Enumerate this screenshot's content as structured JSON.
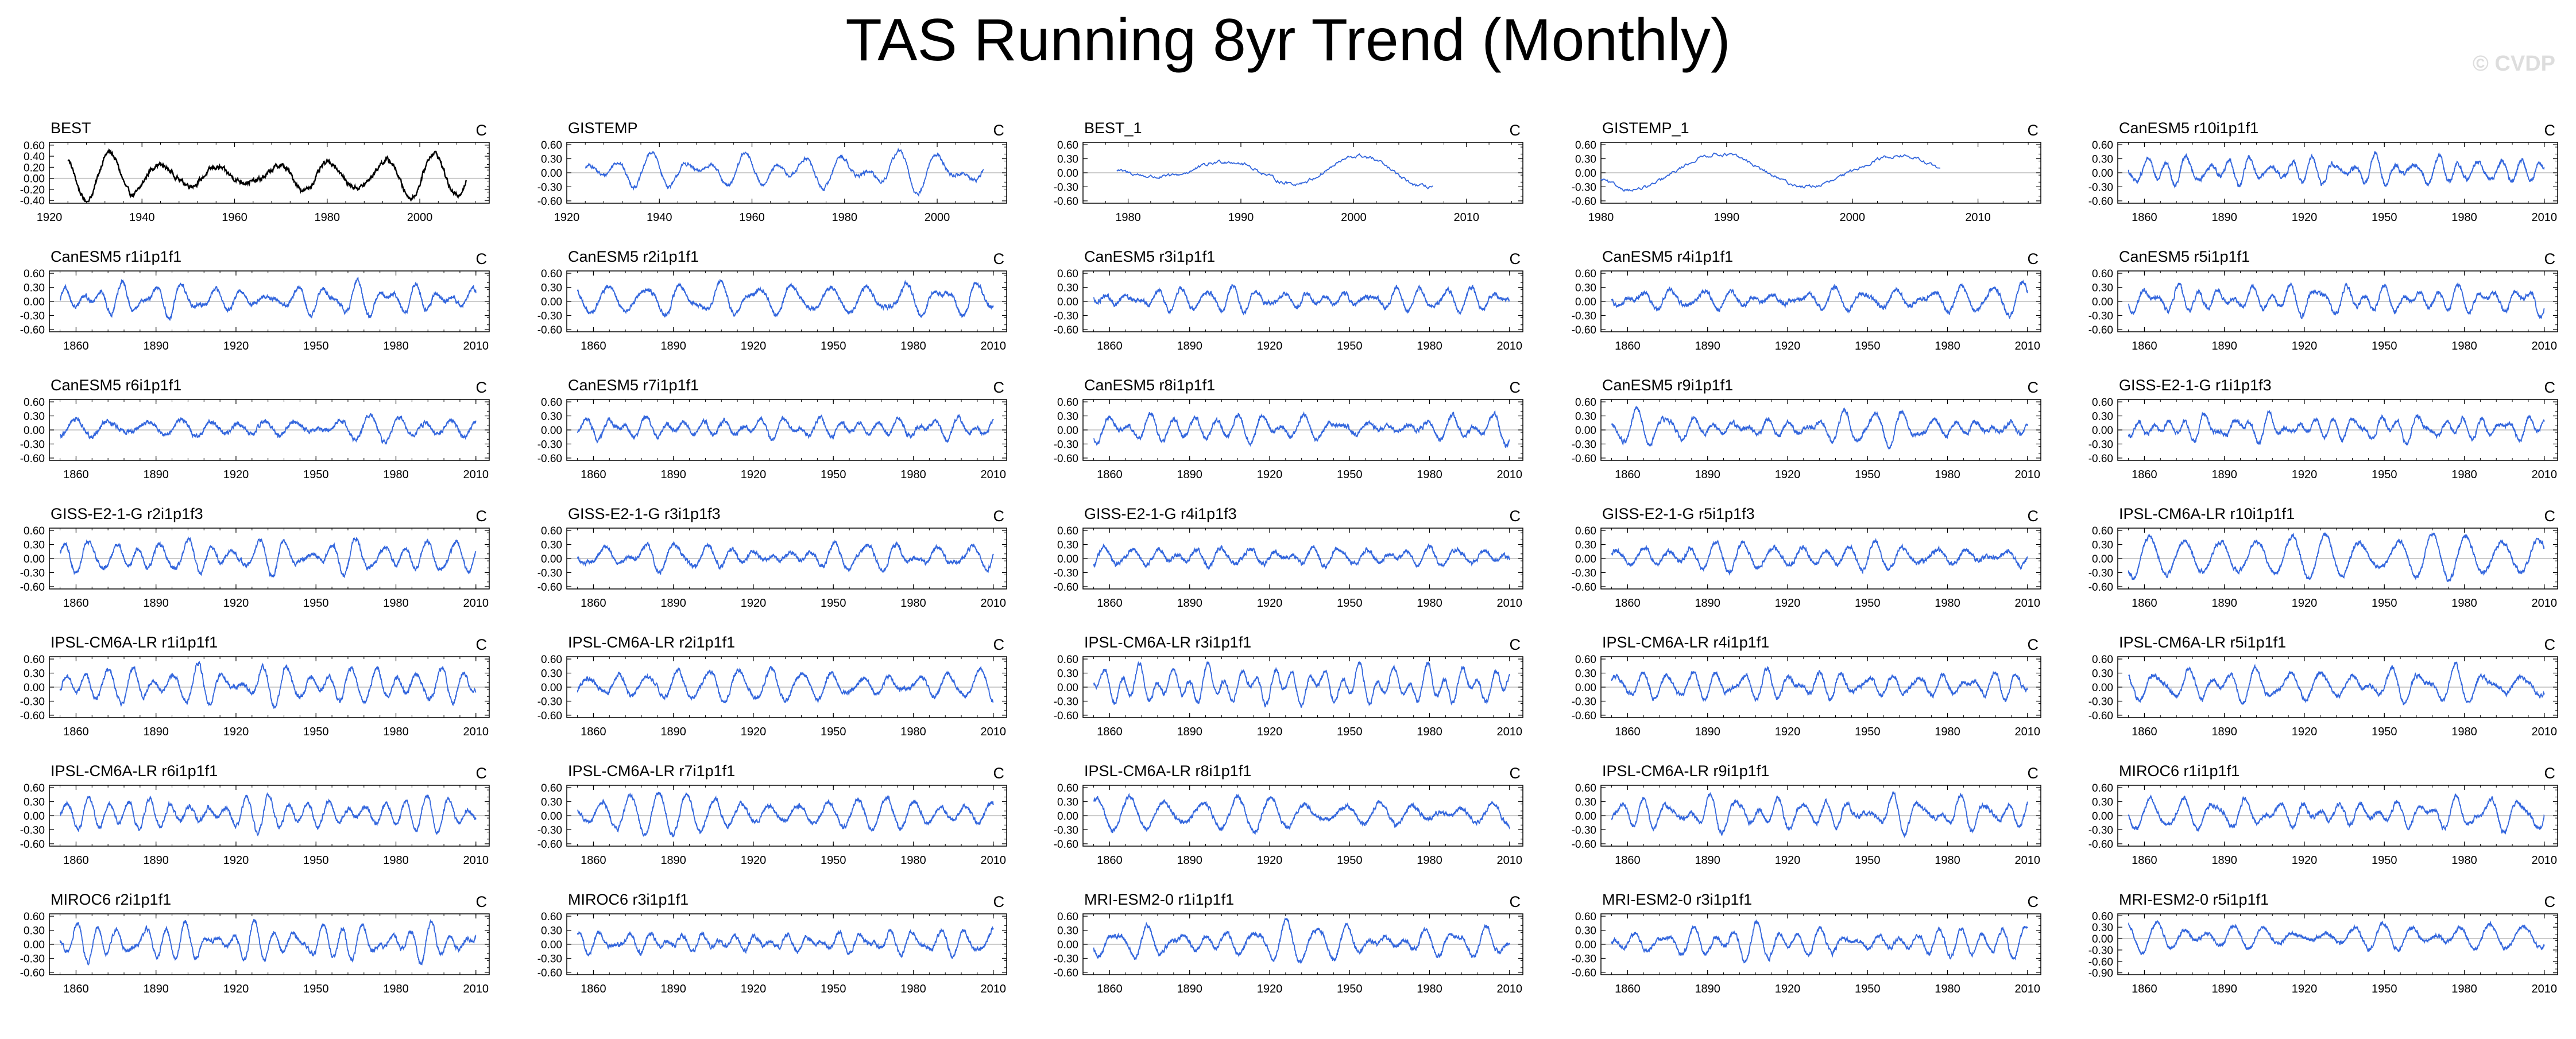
{
  "title": "TAS Running 8yr Trend (Monthly)",
  "watermark": "© CVDP",
  "colors": {
    "observations": "#000000",
    "models": "#3366dd",
    "zero_line": "#bbbbbb",
    "frame": "#000000"
  },
  "chart_data": {
    "type": "line",
    "units": "C",
    "panels": [
      {
        "label": "BEST",
        "units": "C",
        "xlim": [
          1920,
          2015
        ],
        "ylim": [
          -0.45,
          0.65
        ],
        "yticks": [
          "0.60",
          "0.40",
          "0.20",
          "0.00",
          "-0.20",
          "-0.40"
        ],
        "xticks": [
          "1920",
          "1940",
          "1960",
          "1980",
          "2000"
        ],
        "series_span": [
          1924,
          2010
        ],
        "observation": true
      },
      {
        "label": "GISTEMP",
        "units": "C",
        "xlim": [
          1920,
          2015
        ],
        "ylim": [
          -0.65,
          0.65
        ],
        "yticks": [
          "0.60",
          "0.30",
          "0.00",
          "-0.30",
          "-0.60"
        ],
        "xticks": [
          "1920",
          "1940",
          "1960",
          "1980",
          "2000"
        ],
        "series_span": [
          1924,
          2010
        ]
      },
      {
        "label": "BEST_1",
        "units": "C",
        "xlim": [
          1976,
          2015
        ],
        "ylim": [
          -0.65,
          0.65
        ],
        "yticks": [
          "0.60",
          "0.30",
          "0.00",
          "-0.30",
          "-0.60"
        ],
        "xticks": [
          "1980",
          "1990",
          "2000",
          "2010"
        ],
        "series_span": [
          1979,
          2007
        ]
      },
      {
        "label": "GISTEMP_1",
        "units": "C",
        "xlim": [
          1980,
          2015
        ],
        "ylim": [
          -0.65,
          0.65
        ],
        "yticks": [
          "0.60",
          "0.30",
          "0.00",
          "-0.30",
          "-0.60"
        ],
        "xticks": [
          "1980",
          "1990",
          "2000",
          "2010"
        ],
        "series_span": [
          1980,
          2007
        ]
      },
      {
        "label": "CanESM5 r10i1p1f1",
        "units": "C",
        "xlim": [
          1850,
          2015
        ],
        "ylim": [
          -0.65,
          0.65
        ],
        "yticks": [
          "0.60",
          "0.30",
          "0.00",
          "-0.30",
          "-0.60"
        ],
        "xticks": [
          "1860",
          "1890",
          "1920",
          "1950",
          "1980",
          "2010"
        ],
        "series_span": [
          1854,
          2010
        ]
      },
      {
        "label": "CanESM5 r1i1p1f1",
        "units": "C",
        "xlim": [
          1850,
          2015
        ],
        "ylim": [
          -0.65,
          0.65
        ],
        "yticks": [
          "0.60",
          "0.30",
          "0.00",
          "-0.30",
          "-0.60"
        ],
        "xticks": [
          "1860",
          "1890",
          "1920",
          "1950",
          "1980",
          "2010"
        ],
        "series_span": [
          1854,
          2010
        ]
      },
      {
        "label": "CanESM5 r2i1p1f1",
        "units": "C",
        "xlim": [
          1850,
          2015
        ],
        "ylim": [
          -0.65,
          0.65
        ],
        "yticks": [
          "0.60",
          "0.30",
          "0.00",
          "-0.30",
          "-0.60"
        ],
        "xticks": [
          "1860",
          "1890",
          "1920",
          "1950",
          "1980",
          "2010"
        ],
        "series_span": [
          1854,
          2010
        ]
      },
      {
        "label": "CanESM5 r3i1p1f1",
        "units": "C",
        "xlim": [
          1850,
          2015
        ],
        "ylim": [
          -0.65,
          0.65
        ],
        "yticks": [
          "0.60",
          "0.30",
          "0.00",
          "-0.30",
          "-0.60"
        ],
        "xticks": [
          "1860",
          "1890",
          "1920",
          "1950",
          "1980",
          "2010"
        ],
        "series_span": [
          1854,
          2010
        ]
      },
      {
        "label": "CanESM5 r4i1p1f1",
        "units": "C",
        "xlim": [
          1850,
          2015
        ],
        "ylim": [
          -0.65,
          0.65
        ],
        "yticks": [
          "0.60",
          "0.30",
          "0.00",
          "-0.30",
          "-0.60"
        ],
        "xticks": [
          "1860",
          "1890",
          "1920",
          "1950",
          "1980",
          "2010"
        ],
        "series_span": [
          1854,
          2010
        ]
      },
      {
        "label": "CanESM5 r5i1p1f1",
        "units": "C",
        "xlim": [
          1850,
          2015
        ],
        "ylim": [
          -0.65,
          0.65
        ],
        "yticks": [
          "0.60",
          "0.30",
          "0.00",
          "-0.30",
          "-0.60"
        ],
        "xticks": [
          "1860",
          "1890",
          "1920",
          "1950",
          "1980",
          "2010"
        ],
        "series_span": [
          1854,
          2010
        ]
      },
      {
        "label": "CanESM5 r6i1p1f1",
        "units": "C",
        "xlim": [
          1850,
          2015
        ],
        "ylim": [
          -0.65,
          0.65
        ],
        "yticks": [
          "0.60",
          "0.30",
          "0.00",
          "-0.30",
          "-0.60"
        ],
        "xticks": [
          "1860",
          "1890",
          "1920",
          "1950",
          "1980",
          "2010"
        ],
        "series_span": [
          1854,
          2010
        ]
      },
      {
        "label": "CanESM5 r7i1p1f1",
        "units": "C",
        "xlim": [
          1850,
          2015
        ],
        "ylim": [
          -0.65,
          0.65
        ],
        "yticks": [
          "0.60",
          "0.30",
          "0.00",
          "-0.30",
          "-0.60"
        ],
        "xticks": [
          "1860",
          "1890",
          "1920",
          "1950",
          "1980",
          "2010"
        ],
        "series_span": [
          1854,
          2010
        ]
      },
      {
        "label": "CanESM5 r8i1p1f1",
        "units": "C",
        "xlim": [
          1850,
          2015
        ],
        "ylim": [
          -0.65,
          0.65
        ],
        "yticks": [
          "0.60",
          "0.30",
          "0.00",
          "-0.30",
          "-0.60"
        ],
        "xticks": [
          "1860",
          "1890",
          "1920",
          "1950",
          "1980",
          "2010"
        ],
        "series_span": [
          1854,
          2010
        ]
      },
      {
        "label": "CanESM5 r9i1p1f1",
        "units": "C",
        "xlim": [
          1850,
          2015
        ],
        "ylim": [
          -0.65,
          0.65
        ],
        "yticks": [
          "0.60",
          "0.30",
          "0.00",
          "-0.30",
          "-0.60"
        ],
        "xticks": [
          "1860",
          "1890",
          "1920",
          "1950",
          "1980",
          "2010"
        ],
        "series_span": [
          1854,
          2010
        ]
      },
      {
        "label": "GISS-E2-1-G r1i1p1f3",
        "units": "C",
        "xlim": [
          1850,
          2015
        ],
        "ylim": [
          -0.65,
          0.65
        ],
        "yticks": [
          "0.60",
          "0.30",
          "0.00",
          "-0.30",
          "-0.60"
        ],
        "xticks": [
          "1860",
          "1890",
          "1920",
          "1950",
          "1980",
          "2010"
        ],
        "series_span": [
          1854,
          2010
        ]
      },
      {
        "label": "GISS-E2-1-G r2i1p1f3",
        "units": "C",
        "xlim": [
          1850,
          2015
        ],
        "ylim": [
          -0.65,
          0.65
        ],
        "yticks": [
          "0.60",
          "0.30",
          "0.00",
          "-0.30",
          "-0.60"
        ],
        "xticks": [
          "1860",
          "1890",
          "1920",
          "1950",
          "1980",
          "2010"
        ],
        "series_span": [
          1854,
          2010
        ]
      },
      {
        "label": "GISS-E2-1-G r3i1p1f3",
        "units": "C",
        "xlim": [
          1850,
          2015
        ],
        "ylim": [
          -0.65,
          0.65
        ],
        "yticks": [
          "0.60",
          "0.30",
          "0.00",
          "-0.30",
          "-0.60"
        ],
        "xticks": [
          "1860",
          "1890",
          "1920",
          "1950",
          "1980",
          "2010"
        ],
        "series_span": [
          1854,
          2010
        ]
      },
      {
        "label": "GISS-E2-1-G r4i1p1f3",
        "units": "C",
        "xlim": [
          1850,
          2015
        ],
        "ylim": [
          -0.65,
          0.65
        ],
        "yticks": [
          "0.60",
          "0.30",
          "0.00",
          "-0.30",
          "-0.60"
        ],
        "xticks": [
          "1860",
          "1890",
          "1920",
          "1950",
          "1980",
          "2010"
        ],
        "series_span": [
          1854,
          2010
        ]
      },
      {
        "label": "GISS-E2-1-G r5i1p1f3",
        "units": "C",
        "xlim": [
          1850,
          2015
        ],
        "ylim": [
          -0.65,
          0.65
        ],
        "yticks": [
          "0.60",
          "0.30",
          "0.00",
          "-0.30",
          "-0.60"
        ],
        "xticks": [
          "1860",
          "1890",
          "1920",
          "1950",
          "1980",
          "2010"
        ],
        "series_span": [
          1854,
          2010
        ]
      },
      {
        "label": "IPSL-CM6A-LR r10i1p1f1",
        "units": "C",
        "xlim": [
          1850,
          2015
        ],
        "ylim": [
          -0.65,
          0.65
        ],
        "yticks": [
          "0.60",
          "0.30",
          "0.00",
          "-0.30",
          "-0.60"
        ],
        "xticks": [
          "1860",
          "1890",
          "1920",
          "1950",
          "1980",
          "2010"
        ],
        "series_span": [
          1854,
          2010
        ]
      },
      {
        "label": "IPSL-CM6A-LR r1i1p1f1",
        "units": "C",
        "xlim": [
          1850,
          2015
        ],
        "ylim": [
          -0.65,
          0.65
        ],
        "yticks": [
          "0.60",
          "0.30",
          "0.00",
          "-0.30",
          "-0.60"
        ],
        "xticks": [
          "1860",
          "1890",
          "1920",
          "1950",
          "1980",
          "2010"
        ],
        "series_span": [
          1854,
          2010
        ]
      },
      {
        "label": "IPSL-CM6A-LR r2i1p1f1",
        "units": "C",
        "xlim": [
          1850,
          2015
        ],
        "ylim": [
          -0.65,
          0.65
        ],
        "yticks": [
          "0.60",
          "0.30",
          "0.00",
          "-0.30",
          "-0.60"
        ],
        "xticks": [
          "1860",
          "1890",
          "1920",
          "1950",
          "1980",
          "2010"
        ],
        "series_span": [
          1854,
          2010
        ]
      },
      {
        "label": "IPSL-CM6A-LR r3i1p1f1",
        "units": "C",
        "xlim": [
          1850,
          2015
        ],
        "ylim": [
          -0.65,
          0.65
        ],
        "yticks": [
          "0.60",
          "0.30",
          "0.00",
          "-0.30",
          "-0.60"
        ],
        "xticks": [
          "1860",
          "1890",
          "1920",
          "1950",
          "1980",
          "2010"
        ],
        "series_span": [
          1854,
          2010
        ]
      },
      {
        "label": "IPSL-CM6A-LR r4i1p1f1",
        "units": "C",
        "xlim": [
          1850,
          2015
        ],
        "ylim": [
          -0.65,
          0.65
        ],
        "yticks": [
          "0.60",
          "0.30",
          "0.00",
          "-0.30",
          "-0.60"
        ],
        "xticks": [
          "1860",
          "1890",
          "1920",
          "1950",
          "1980",
          "2010"
        ],
        "series_span": [
          1854,
          2010
        ]
      },
      {
        "label": "IPSL-CM6A-LR r5i1p1f1",
        "units": "C",
        "xlim": [
          1850,
          2015
        ],
        "ylim": [
          -0.65,
          0.65
        ],
        "yticks": [
          "0.60",
          "0.30",
          "0.00",
          "-0.30",
          "-0.60"
        ],
        "xticks": [
          "1860",
          "1890",
          "1920",
          "1950",
          "1980",
          "2010"
        ],
        "series_span": [
          1854,
          2010
        ]
      },
      {
        "label": "IPSL-CM6A-LR r6i1p1f1",
        "units": "C",
        "xlim": [
          1850,
          2015
        ],
        "ylim": [
          -0.65,
          0.65
        ],
        "yticks": [
          "0.60",
          "0.30",
          "0.00",
          "-0.30",
          "-0.60"
        ],
        "xticks": [
          "1860",
          "1890",
          "1920",
          "1950",
          "1980",
          "2010"
        ],
        "series_span": [
          1854,
          2010
        ]
      },
      {
        "label": "IPSL-CM6A-LR r7i1p1f1",
        "units": "C",
        "xlim": [
          1850,
          2015
        ],
        "ylim": [
          -0.65,
          0.65
        ],
        "yticks": [
          "0.60",
          "0.30",
          "0.00",
          "-0.30",
          "-0.60"
        ],
        "xticks": [
          "1860",
          "1890",
          "1920",
          "1950",
          "1980",
          "2010"
        ],
        "series_span": [
          1854,
          2010
        ]
      },
      {
        "label": "IPSL-CM6A-LR r8i1p1f1",
        "units": "C",
        "xlim": [
          1850,
          2015
        ],
        "ylim": [
          -0.65,
          0.65
        ],
        "yticks": [
          "0.60",
          "0.30",
          "0.00",
          "-0.30",
          "-0.60"
        ],
        "xticks": [
          "1860",
          "1890",
          "1920",
          "1950",
          "1980",
          "2010"
        ],
        "series_span": [
          1854,
          2010
        ]
      },
      {
        "label": "IPSL-CM6A-LR r9i1p1f1",
        "units": "C",
        "xlim": [
          1850,
          2015
        ],
        "ylim": [
          -0.65,
          0.65
        ],
        "yticks": [
          "0.60",
          "0.30",
          "0.00",
          "-0.30",
          "-0.60"
        ],
        "xticks": [
          "1860",
          "1890",
          "1920",
          "1950",
          "1980",
          "2010"
        ],
        "series_span": [
          1854,
          2010
        ]
      },
      {
        "label": "MIROC6 r1i1p1f1",
        "units": "C",
        "xlim": [
          1850,
          2015
        ],
        "ylim": [
          -0.65,
          0.65
        ],
        "yticks": [
          "0.60",
          "0.30",
          "0.00",
          "-0.30",
          "-0.60"
        ],
        "xticks": [
          "1860",
          "1890",
          "1920",
          "1950",
          "1980",
          "2010"
        ],
        "series_span": [
          1854,
          2010
        ]
      },
      {
        "label": "MIROC6 r2i1p1f1",
        "units": "C",
        "xlim": [
          1850,
          2015
        ],
        "ylim": [
          -0.65,
          0.65
        ],
        "yticks": [
          "0.60",
          "0.30",
          "0.00",
          "-0.30",
          "-0.60"
        ],
        "xticks": [
          "1860",
          "1890",
          "1920",
          "1950",
          "1980",
          "2010"
        ],
        "series_span": [
          1854,
          2010
        ]
      },
      {
        "label": "MIROC6 r3i1p1f1",
        "units": "C",
        "xlim": [
          1850,
          2015
        ],
        "ylim": [
          -0.65,
          0.65
        ],
        "yticks": [
          "0.60",
          "0.30",
          "0.00",
          "-0.30",
          "-0.60"
        ],
        "xticks": [
          "1860",
          "1890",
          "1920",
          "1950",
          "1980",
          "2010"
        ],
        "series_span": [
          1854,
          2010
        ]
      },
      {
        "label": "MRI-ESM2-0 r1i1p1f1",
        "units": "C",
        "xlim": [
          1850,
          2015
        ],
        "ylim": [
          -0.65,
          0.65
        ],
        "yticks": [
          "0.60",
          "0.30",
          "0.00",
          "-0.30",
          "-0.60"
        ],
        "xticks": [
          "1860",
          "1890",
          "1920",
          "1950",
          "1980",
          "2010"
        ],
        "series_span": [
          1854,
          2010
        ]
      },
      {
        "label": "MRI-ESM2-0 r3i1p1f1",
        "units": "C",
        "xlim": [
          1850,
          2015
        ],
        "ylim": [
          -0.65,
          0.65
        ],
        "yticks": [
          "0.60",
          "0.30",
          "0.00",
          "-0.30",
          "-0.60"
        ],
        "xticks": [
          "1860",
          "1890",
          "1920",
          "1950",
          "1980",
          "2010"
        ],
        "series_span": [
          1854,
          2010
        ]
      },
      {
        "label": "MRI-ESM2-0 r5i1p1f1",
        "units": "C",
        "xlim": [
          1850,
          2015
        ],
        "ylim": [
          -0.95,
          0.65
        ],
        "yticks": [
          "0.60",
          "0.30",
          "0.00",
          "-0.30",
          "-0.60",
          "-0.90"
        ],
        "xticks": [
          "1860",
          "1890",
          "1920",
          "1950",
          "1980",
          "2010"
        ],
        "series_span": [
          1854,
          2010
        ]
      }
    ]
  }
}
